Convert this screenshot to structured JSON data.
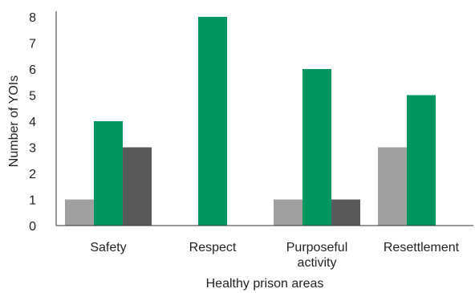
{
  "chart_data": {
    "type": "bar",
    "title": "",
    "xlabel": "Healthy prison areas",
    "ylabel": "Number of YOIs",
    "ylim": [
      0,
      8
    ],
    "yticks": [
      "0",
      "1",
      "2",
      "3",
      "4",
      "5",
      "6",
      "7",
      "8"
    ],
    "grid": false,
    "legend": "none",
    "categories": [
      [
        "Safety"
      ],
      [
        "Respect"
      ],
      [
        "Purposeful",
        "activity"
      ],
      [
        "Resettlement"
      ]
    ],
    "series": [
      {
        "color": "#a0a0a0",
        "values": [
          1,
          0,
          1,
          3
        ]
      },
      {
        "color": "#009660",
        "values": [
          4,
          8,
          6,
          5
        ]
      },
      {
        "color": "#58595b",
        "values": [
          3,
          0,
          1,
          0
        ]
      }
    ]
  }
}
